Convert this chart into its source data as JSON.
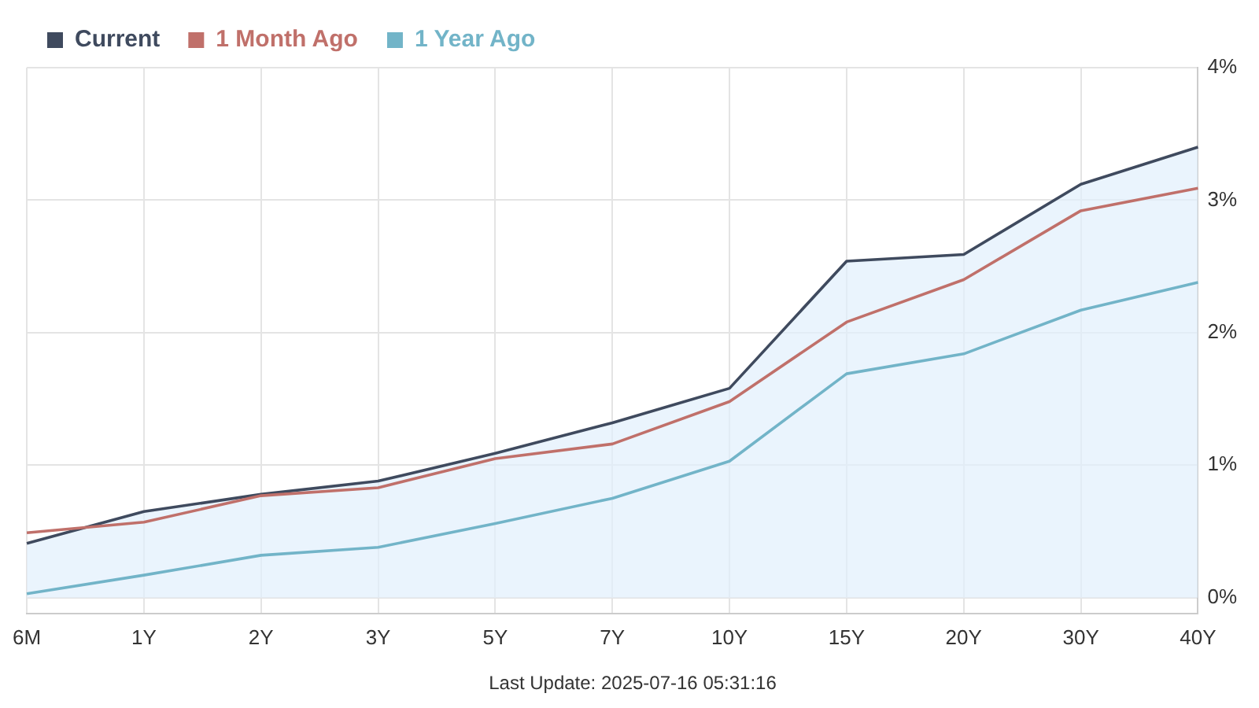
{
  "chart_data": {
    "type": "line",
    "categories": [
      "6M",
      "1Y",
      "2Y",
      "3Y",
      "5Y",
      "7Y",
      "10Y",
      "15Y",
      "20Y",
      "30Y",
      "40Y"
    ],
    "series": [
      {
        "name": "Current",
        "type": "area",
        "color": "#3f4a5e",
        "values": [
          0.41,
          0.65,
          0.78,
          0.88,
          1.09,
          1.32,
          1.58,
          2.54,
          2.59,
          3.12,
          3.4
        ]
      },
      {
        "name": "1 Month Ago",
        "color": "#c0706a",
        "values": [
          0.49,
          0.57,
          0.77,
          0.83,
          1.05,
          1.16,
          1.48,
          2.08,
          2.4,
          2.92,
          3.09
        ]
      },
      {
        "name": "1 Year Ago",
        "color": "#72b4c8",
        "values": [
          0.03,
          0.17,
          0.32,
          0.38,
          0.56,
          0.75,
          1.03,
          1.69,
          1.84,
          2.17,
          2.38
        ]
      }
    ],
    "ylim": [
      -0.12,
      4
    ],
    "yticks": [
      {
        "value": 0,
        "label": "0%"
      },
      {
        "value": 1,
        "label": "1%"
      },
      {
        "value": 2,
        "label": "2%"
      },
      {
        "value": 3,
        "label": "3%"
      },
      {
        "value": 4,
        "label": "4%"
      }
    ],
    "grid": true,
    "legend": "top left",
    "marker": "none",
    "line_style": "solid",
    "annotations": [
      "Last Update: 2025-07-16 05:31:16"
    ]
  }
}
